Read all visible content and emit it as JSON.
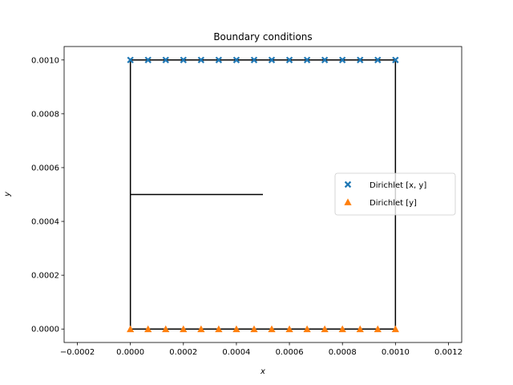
{
  "chart_data": {
    "type": "scatter",
    "title": "Boundary conditions",
    "xlabel": "x",
    "ylabel": "y",
    "xlim": [
      -0.00025,
      0.00125
    ],
    "ylim": [
      -5e-05,
      0.00105
    ],
    "x_ticks": [
      -0.0002,
      0.0,
      0.0002,
      0.0004,
      0.0006,
      0.0008,
      0.001,
      0.0012
    ],
    "x_tick_labels": [
      "−0.0002",
      "0.0000",
      "0.0002",
      "0.0004",
      "0.0006",
      "0.0008",
      "0.0010",
      "0.0012"
    ],
    "y_ticks": [
      0.0,
      0.0002,
      0.0004,
      0.0006,
      0.0008,
      0.001
    ],
    "y_tick_labels": [
      "0.0000",
      "0.0002",
      "0.0004",
      "0.0006",
      "0.0008",
      "0.0010"
    ],
    "grid": false,
    "legend_position": "center-right",
    "lines": [
      {
        "x": [
          0.0,
          0.001,
          0.001,
          0.0,
          0.0
        ],
        "y": [
          0.0,
          0.0,
          0.001,
          0.001,
          0.0
        ],
        "color": "#000000"
      },
      {
        "x": [
          0.0,
          0.0005
        ],
        "y": [
          0.0005,
          0.0005
        ],
        "color": "#000000"
      }
    ],
    "series": [
      {
        "name": "Dirichlet  [x, y]",
        "marker": "x-filled",
        "color": "#1f77b4",
        "x": [
          0.0,
          6.67e-05,
          0.0001333,
          0.0002,
          0.0002667,
          0.0003333,
          0.0004,
          0.0004667,
          0.0005333,
          0.0006,
          0.0006667,
          0.0007333,
          0.0008,
          0.0008667,
          0.0009333,
          0.001
        ],
        "y": [
          0.001,
          0.001,
          0.001,
          0.001,
          0.001,
          0.001,
          0.001,
          0.001,
          0.001,
          0.001,
          0.001,
          0.001,
          0.001,
          0.001,
          0.001,
          0.001
        ]
      },
      {
        "name": "Dirichlet  [y]",
        "marker": "triangle",
        "color": "#ff7f0e",
        "x": [
          0.0,
          6.67e-05,
          0.0001333,
          0.0002,
          0.0002667,
          0.0003333,
          0.0004,
          0.0004667,
          0.0005333,
          0.0006,
          0.0006667,
          0.0007333,
          0.0008,
          0.0008667,
          0.0009333,
          0.001
        ],
        "y": [
          0.0,
          0.0,
          0.0,
          0.0,
          0.0,
          0.0,
          0.0,
          0.0,
          0.0,
          0.0,
          0.0,
          0.0,
          0.0,
          0.0,
          0.0,
          0.0
        ]
      }
    ]
  }
}
